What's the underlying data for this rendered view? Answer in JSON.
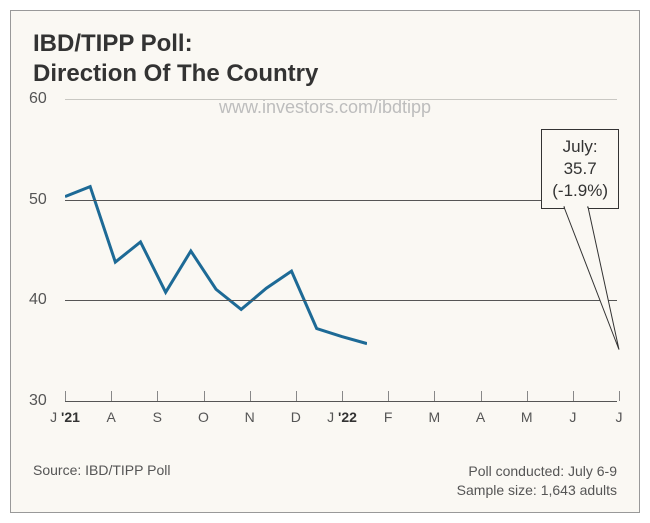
{
  "title_line1": "IBD/TIPP Poll:",
  "title_line2": "Direction Of The Country",
  "watermark": "www.investors.com/ibdtipp",
  "chart": {
    "type": "line",
    "ylim": [
      30,
      60
    ],
    "ytick_step": 10,
    "yticks": [
      60,
      50,
      40,
      30
    ],
    "x_labels": [
      "J",
      "A",
      "S",
      "O",
      "N",
      "D",
      "J",
      "F",
      "M",
      "A",
      "M",
      "J",
      "J"
    ],
    "x_year_markers": {
      "0": "'21",
      "6": "'22"
    },
    "values": [
      50.3,
      51.3,
      43.8,
      45.8,
      40.8,
      44.9,
      41.1,
      39.1,
      41.2,
      42.9,
      37.2,
      36.4,
      35.7
    ],
    "line_color": "#1d6a96",
    "line_width": 3,
    "grid_color_major": "#555555",
    "grid_color_minor": "#c9c8c3",
    "background_color": "#faf8f3",
    "axis_color": "#888888"
  },
  "callout": {
    "line1": "July:",
    "line2": "35.7",
    "line3": "(-1.9%)"
  },
  "footer": {
    "source": "Source: IBD/TIPP Poll",
    "conducted": "Poll conducted: July 6-9",
    "sample": "Sample size: 1,643 adults"
  }
}
